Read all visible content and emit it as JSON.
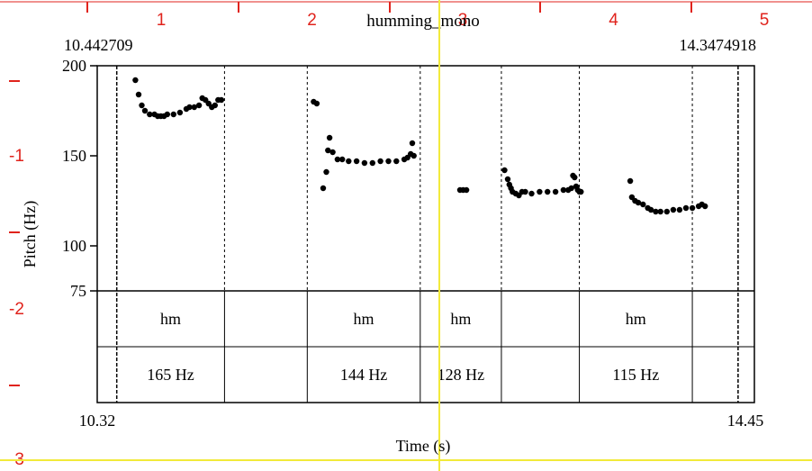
{
  "title": "humming_mono",
  "selection": {
    "start": "10.442709",
    "end": "14.3474918"
  },
  "ruler_top": [
    "1",
    "2",
    "3",
    "4",
    "5"
  ],
  "ruler_left": [
    "-1",
    "-2",
    "-3"
  ],
  "colors": {
    "ruler": "#e0231c",
    "cursor": "#f2ea3a",
    "points": "#000000",
    "grid": "#000000"
  },
  "chart_data": {
    "type": "scatter",
    "title": "humming_mono",
    "xlabel": "Time (s)",
    "ylabel": "Pitch (Hz)",
    "xlim": [
      10.32,
      14.45
    ],
    "ylim": [
      75,
      200
    ],
    "x_ticks": [
      "10.32",
      "14.45"
    ],
    "y_ticks": [
      200,
      150,
      100,
      75
    ],
    "cursor_x": 12.47,
    "interval_bounds": [
      10.442709,
      11.12,
      11.64,
      12.35,
      12.86,
      13.35,
      14.06,
      14.3474918
    ],
    "tier1": {
      "intervals": [
        {
          "start": 10.442709,
          "end": 11.12,
          "label": ""
        },
        {
          "start": 11.12,
          "end": 11.64,
          "label": ""
        },
        {
          "start": 11.64,
          "end": 12.35,
          "label": "hm"
        },
        {
          "start": 12.35,
          "end": 12.86,
          "label": ""
        },
        {
          "start": 12.86,
          "end": 13.35,
          "label": "hm"
        },
        {
          "start": 13.35,
          "end": 14.06,
          "label": ""
        },
        {
          "start": 14.06,
          "end": 14.3474918,
          "label": ""
        }
      ]
    },
    "tier2_labels": [
      {
        "start": 10.442709,
        "end": 11.12,
        "label": "165 Hz"
      },
      {
        "start": 11.64,
        "end": 12.35,
        "label": "144 Hz"
      },
      {
        "start": 12.35,
        "end": 12.86,
        "label": "128 Hz"
      },
      {
        "start": 13.35,
        "end": 14.06,
        "label": "115 Hz"
      }
    ],
    "tier1_labels": [
      {
        "start": 10.442709,
        "end": 11.12,
        "label": "hm"
      },
      {
        "start": 11.64,
        "end": 12.35,
        "label": "hm"
      },
      {
        "start": 12.35,
        "end": 12.86,
        "label": "hm"
      },
      {
        "start": 13.35,
        "end": 14.06,
        "label": "hm"
      }
    ],
    "segments": [
      {
        "x": [
          10.56,
          10.58,
          10.6,
          10.62,
          10.65,
          10.68,
          10.7,
          10.72,
          10.74,
          10.76,
          10.8,
          10.84,
          10.88,
          10.9,
          10.93,
          10.96,
          10.98,
          11.0,
          11.02,
          11.04,
          11.06,
          11.08,
          11.1
        ],
        "y": [
          192,
          184,
          178,
          175,
          173,
          173,
          172,
          172,
          172,
          173,
          173,
          174,
          176,
          177,
          177,
          178,
          182,
          181,
          179,
          177,
          178,
          181,
          181
        ]
      },
      {
        "x": [
          11.68,
          11.7,
          11.74,
          11.76,
          11.77,
          11.78,
          11.8,
          11.83,
          11.86,
          11.9,
          11.95,
          12.0,
          12.05,
          12.1,
          12.15,
          12.2,
          12.25,
          12.27,
          12.29,
          12.3,
          12.31
        ],
        "y": [
          180,
          179,
          132,
          141,
          153,
          160,
          152,
          148,
          148,
          147,
          147,
          146,
          146,
          147,
          147,
          147,
          148,
          149,
          151,
          157,
          150
        ]
      },
      {
        "x": [
          12.6,
          12.62,
          12.64
        ],
        "y": [
          131,
          131,
          131
        ]
      },
      {
        "x": [
          12.88,
          12.9,
          12.91,
          12.92,
          12.93,
          12.95,
          12.97,
          12.99,
          13.01,
          13.05,
          13.1,
          13.15,
          13.2,
          13.25,
          13.28,
          13.3,
          13.31,
          13.32,
          13.33,
          13.34,
          13.35,
          13.36
        ],
        "y": [
          142,
          137,
          134,
          132,
          130,
          129,
          128,
          130,
          130,
          129,
          130,
          130,
          130,
          131,
          131,
          132,
          139,
          138,
          133,
          131,
          130,
          130
        ]
      },
      {
        "x": [
          13.67,
          13.68,
          13.7,
          13.72,
          13.75,
          13.78,
          13.8,
          13.83,
          13.86,
          13.9,
          13.94,
          13.98,
          14.02,
          14.06,
          14.1,
          14.12,
          14.14
        ],
        "y": [
          136,
          127,
          125,
          124,
          123,
          121,
          120,
          119,
          119,
          119,
          120,
          120,
          121,
          121,
          122,
          123,
          122
        ]
      }
    ]
  }
}
